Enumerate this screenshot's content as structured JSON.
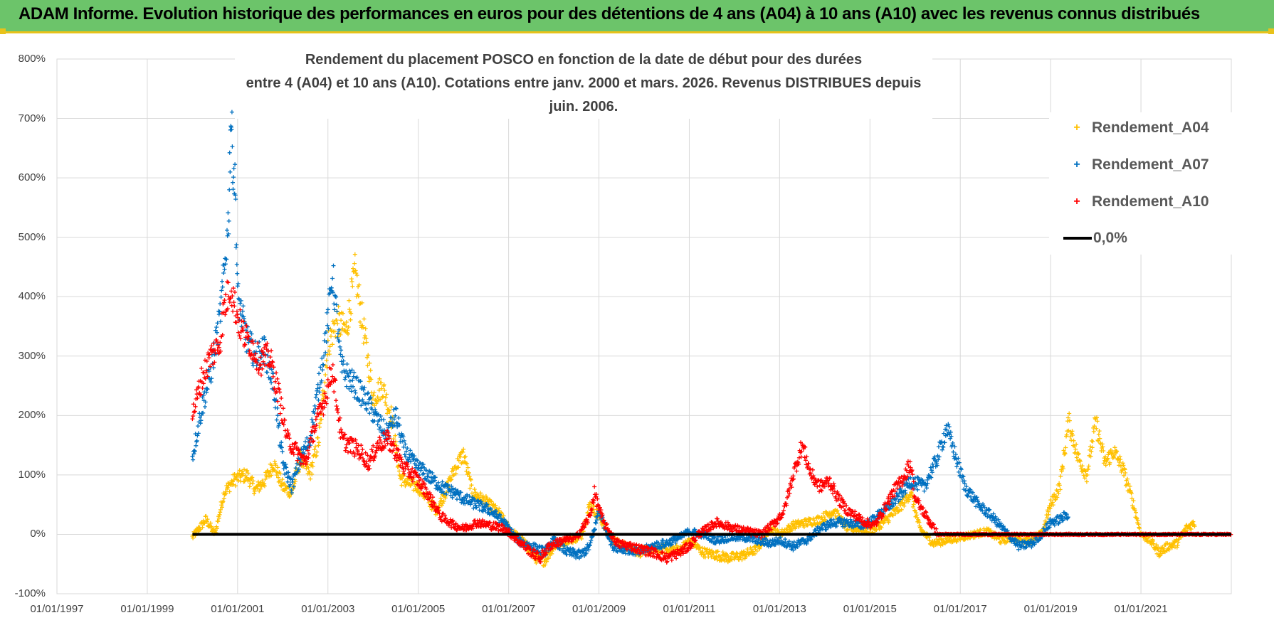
{
  "header": {
    "title": "ADAM Informe. Evolution historique des performances en euros pour des détentions de 4 ans (A04) à 10 ans (A10) avec les revenus connus distribués"
  },
  "chart_data": {
    "type": "scatter",
    "title_line1": "Rendement du placement POSCO en fonction de la date de début pour des durées",
    "title_line2": "entre 4 (A04) et 10 ans (A10).  Cotations entre janv. 2000 et mars. 2026.  Revenus DISTRIBUES depuis juin. 2006.",
    "xlabel": "",
    "ylabel": "",
    "x_range": [
      1997.0,
      2023.0
    ],
    "ylim": [
      -100,
      800
    ],
    "y_tick_labels": [
      "-100%",
      "0%",
      "100%",
      "200%",
      "300%",
      "400%",
      "500%",
      "600%",
      "700%",
      "800%"
    ],
    "y_tick_values": [
      -100,
      0,
      100,
      200,
      300,
      400,
      500,
      600,
      700,
      800
    ],
    "x_tick_labels": [
      "01/01/1997",
      "01/01/1999",
      "01/01/2001",
      "01/01/2003",
      "01/01/2005",
      "01/01/2007",
      "01/01/2009",
      "01/01/2011",
      "01/01/2013",
      "01/01/2015",
      "01/01/2017",
      "01/01/2019",
      "01/01/2021"
    ],
    "x_tick_values": [
      1997,
      1999,
      2001,
      2003,
      2005,
      2007,
      2009,
      2011,
      2013,
      2015,
      2017,
      2019,
      2021
    ],
    "legend": {
      "position": "top-right",
      "entries": [
        "Rendement_A04",
        "Rendement_A07",
        "Rendement_A10",
        "0,0%"
      ]
    },
    "series": [
      {
        "name": "Rendement_A04",
        "color": "#ffc000",
        "marker": "+",
        "points": [
          [
            2000.0,
            -5
          ],
          [
            2000.3,
            25
          ],
          [
            2000.5,
            0
          ],
          [
            2000.7,
            70
          ],
          [
            2000.9,
            90
          ],
          [
            2001.0,
            95
          ],
          [
            2001.2,
            100
          ],
          [
            2001.4,
            75
          ],
          [
            2001.6,
            90
          ],
          [
            2001.8,
            120
          ],
          [
            2002.0,
            80
          ],
          [
            2002.2,
            70
          ],
          [
            2002.4,
            130
          ],
          [
            2002.6,
            100
          ],
          [
            2002.8,
            160
          ],
          [
            2003.0,
            320
          ],
          [
            2003.2,
            360
          ],
          [
            2003.4,
            340
          ],
          [
            2003.6,
            440
          ],
          [
            2003.8,
            340
          ],
          [
            2004.0,
            230
          ],
          [
            2004.2,
            250
          ],
          [
            2004.4,
            200
          ],
          [
            2004.6,
            95
          ],
          [
            2004.8,
            85
          ],
          [
            2005.0,
            80
          ],
          [
            2005.2,
            60
          ],
          [
            2005.4,
            40
          ],
          [
            2005.6,
            70
          ],
          [
            2005.8,
            110
          ],
          [
            2006.0,
            135
          ],
          [
            2006.2,
            70
          ],
          [
            2006.5,
            55
          ],
          [
            2006.8,
            35
          ],
          [
            2007.0,
            10
          ],
          [
            2007.3,
            -10
          ],
          [
            2007.6,
            -40
          ],
          [
            2007.8,
            -45
          ],
          [
            2008.0,
            -20
          ],
          [
            2008.3,
            -10
          ],
          [
            2008.6,
            -5
          ],
          [
            2008.8,
            50
          ],
          [
            2009.0,
            30
          ],
          [
            2009.3,
            -10
          ],
          [
            2009.6,
            -20
          ],
          [
            2009.9,
            -30
          ],
          [
            2010.2,
            -25
          ],
          [
            2010.5,
            -25
          ],
          [
            2010.8,
            -25
          ],
          [
            2011.0,
            -10
          ],
          [
            2011.3,
            -30
          ],
          [
            2011.6,
            -35
          ],
          [
            2011.9,
            -40
          ],
          [
            2012.2,
            -35
          ],
          [
            2012.5,
            -25
          ],
          [
            2012.8,
            10
          ],
          [
            2013.0,
            0
          ],
          [
            2013.3,
            15
          ],
          [
            2013.6,
            20
          ],
          [
            2013.9,
            25
          ],
          [
            2014.2,
            40
          ],
          [
            2014.5,
            10
          ],
          [
            2014.8,
            10
          ],
          [
            2015.0,
            5
          ],
          [
            2015.3,
            20
          ],
          [
            2015.6,
            40
          ],
          [
            2015.9,
            70
          ],
          [
            2016.1,
            10
          ],
          [
            2016.4,
            -15
          ],
          [
            2016.7,
            -10
          ],
          [
            2017.0,
            -5
          ],
          [
            2017.3,
            0
          ],
          [
            2017.6,
            5
          ],
          [
            2017.9,
            -10
          ],
          [
            2018.2,
            -5
          ],
          [
            2018.5,
            -10
          ],
          [
            2018.8,
            0
          ],
          [
            2019.0,
            50
          ],
          [
            2019.2,
            80
          ],
          [
            2019.4,
            190
          ],
          [
            2019.6,
            130
          ],
          [
            2019.8,
            100
          ],
          [
            2020.0,
            190
          ],
          [
            2020.2,
            120
          ],
          [
            2020.4,
            140
          ],
          [
            2020.6,
            110
          ],
          [
            2020.8,
            60
          ],
          [
            2021.0,
            0
          ],
          [
            2021.2,
            -10
          ],
          [
            2021.4,
            -30
          ],
          [
            2021.6,
            -20
          ],
          [
            2021.8,
            -15
          ],
          [
            2022.0,
            10
          ],
          [
            2022.2,
            20
          ]
        ]
      },
      {
        "name": "Rendement_A07",
        "color": "#0070c0",
        "marker": "+",
        "points": [
          [
            2000.0,
            130
          ],
          [
            2000.2,
            210
          ],
          [
            2000.4,
            270
          ],
          [
            2000.6,
            360
          ],
          [
            2000.7,
            440
          ],
          [
            2000.8,
            530
          ],
          [
            2000.85,
            710
          ],
          [
            2000.9,
            620
          ],
          [
            2000.95,
            580
          ],
          [
            2001.0,
            400
          ],
          [
            2001.2,
            330
          ],
          [
            2001.4,
            300
          ],
          [
            2001.6,
            310
          ],
          [
            2001.8,
            250
          ],
          [
            2002.0,
            120
          ],
          [
            2002.2,
            80
          ],
          [
            2002.4,
            130
          ],
          [
            2002.6,
            160
          ],
          [
            2002.8,
            250
          ],
          [
            2003.0,
            360
          ],
          [
            2003.1,
            440
          ],
          [
            2003.3,
            280
          ],
          [
            2003.5,
            260
          ],
          [
            2003.7,
            240
          ],
          [
            2003.9,
            220
          ],
          [
            2004.1,
            190
          ],
          [
            2004.3,
            170
          ],
          [
            2004.5,
            200
          ],
          [
            2004.7,
            140
          ],
          [
            2004.9,
            120
          ],
          [
            2005.2,
            100
          ],
          [
            2005.5,
            80
          ],
          [
            2005.8,
            70
          ],
          [
            2006.0,
            60
          ],
          [
            2006.3,
            50
          ],
          [
            2006.6,
            40
          ],
          [
            2006.9,
            20
          ],
          [
            2007.2,
            -10
          ],
          [
            2007.5,
            -20
          ],
          [
            2007.8,
            -30
          ],
          [
            2008.0,
            -10
          ],
          [
            2008.3,
            -30
          ],
          [
            2008.6,
            -35
          ],
          [
            2008.8,
            -20
          ],
          [
            2009.0,
            40
          ],
          [
            2009.3,
            -20
          ],
          [
            2009.6,
            -25
          ],
          [
            2009.9,
            -30
          ],
          [
            2010.2,
            -20
          ],
          [
            2010.5,
            -15
          ],
          [
            2010.8,
            -5
          ],
          [
            2011.0,
            5
          ],
          [
            2011.3,
            0
          ],
          [
            2011.6,
            -10
          ],
          [
            2011.9,
            -5
          ],
          [
            2012.2,
            -5
          ],
          [
            2012.5,
            -10
          ],
          [
            2012.8,
            -15
          ],
          [
            2013.0,
            -10
          ],
          [
            2013.3,
            -20
          ],
          [
            2013.6,
            -10
          ],
          [
            2013.9,
            10
          ],
          [
            2014.2,
            20
          ],
          [
            2014.5,
            20
          ],
          [
            2014.8,
            15
          ],
          [
            2015.0,
            20
          ],
          [
            2015.3,
            40
          ],
          [
            2015.6,
            60
          ],
          [
            2015.9,
            90
          ],
          [
            2016.2,
            80
          ],
          [
            2016.5,
            130
          ],
          [
            2016.7,
            180
          ],
          [
            2016.9,
            130
          ],
          [
            2017.1,
            80
          ],
          [
            2017.4,
            50
          ],
          [
            2017.7,
            30
          ],
          [
            2018.0,
            5
          ],
          [
            2018.3,
            -20
          ],
          [
            2018.6,
            -15
          ],
          [
            2018.8,
            0
          ],
          [
            2019.0,
            20
          ],
          [
            2019.2,
            25
          ],
          [
            2019.4,
            35
          ]
        ]
      },
      {
        "name": "Rendement_A10",
        "color": "#ff0000",
        "marker": "+",
        "points": [
          [
            2000.0,
            200
          ],
          [
            2000.2,
            260
          ],
          [
            2000.4,
            300
          ],
          [
            2000.6,
            320
          ],
          [
            2000.7,
            380
          ],
          [
            2000.85,
            420
          ],
          [
            2000.95,
            380
          ],
          [
            2001.1,
            340
          ],
          [
            2001.3,
            320
          ],
          [
            2001.5,
            290
          ],
          [
            2001.7,
            300
          ],
          [
            2001.9,
            240
          ],
          [
            2002.1,
            160
          ],
          [
            2002.3,
            140
          ],
          [
            2002.5,
            120
          ],
          [
            2002.7,
            180
          ],
          [
            2002.9,
            220
          ],
          [
            2003.1,
            280
          ],
          [
            2003.3,
            160
          ],
          [
            2003.5,
            150
          ],
          [
            2003.7,
            140
          ],
          [
            2003.9,
            120
          ],
          [
            2004.1,
            150
          ],
          [
            2004.3,
            160
          ],
          [
            2004.5,
            140
          ],
          [
            2004.7,
            110
          ],
          [
            2004.9,
            100
          ],
          [
            2005.2,
            70
          ],
          [
            2005.5,
            30
          ],
          [
            2005.8,
            15
          ],
          [
            2006.0,
            10
          ],
          [
            2006.3,
            20
          ],
          [
            2006.6,
            15
          ],
          [
            2006.9,
            10
          ],
          [
            2007.2,
            -10
          ],
          [
            2007.5,
            -30
          ],
          [
            2007.7,
            -40
          ],
          [
            2007.9,
            -20
          ],
          [
            2008.2,
            -10
          ],
          [
            2008.5,
            -5
          ],
          [
            2008.8,
            30
          ],
          [
            2008.9,
            70
          ],
          [
            2009.1,
            20
          ],
          [
            2009.4,
            -15
          ],
          [
            2009.7,
            -20
          ],
          [
            2009.9,
            -25
          ],
          [
            2010.2,
            -30
          ],
          [
            2010.5,
            -40
          ],
          [
            2010.8,
            -30
          ],
          [
            2011.0,
            -20
          ],
          [
            2011.2,
            0
          ],
          [
            2011.4,
            10
          ],
          [
            2011.6,
            20
          ],
          [
            2011.8,
            15
          ],
          [
            2012.0,
            10
          ],
          [
            2012.3,
            5
          ],
          [
            2012.6,
            0
          ],
          [
            2012.9,
            20
          ],
          [
            2013.1,
            40
          ],
          [
            2013.3,
            100
          ],
          [
            2013.5,
            150
          ],
          [
            2013.7,
            100
          ],
          [
            2013.9,
            80
          ],
          [
            2014.1,
            90
          ],
          [
            2014.3,
            60
          ],
          [
            2014.5,
            40
          ],
          [
            2014.7,
            30
          ],
          [
            2014.9,
            20
          ],
          [
            2015.1,
            15
          ],
          [
            2015.3,
            40
          ],
          [
            2015.5,
            70
          ],
          [
            2015.7,
            90
          ],
          [
            2015.9,
            120
          ],
          [
            2016.0,
            60
          ],
          [
            2016.5,
            0
          ],
          [
            2017.0,
            0
          ],
          [
            2018.0,
            0
          ],
          [
            2019.0,
            0
          ],
          [
            2020.0,
            0
          ],
          [
            2021.0,
            0
          ],
          [
            2022.0,
            0
          ],
          [
            2023.0,
            0
          ]
        ]
      }
    ],
    "reference_line": {
      "name": "0,0%",
      "color": "#000000",
      "x": [
        2000.0,
        2023.0
      ],
      "y": 0
    }
  }
}
